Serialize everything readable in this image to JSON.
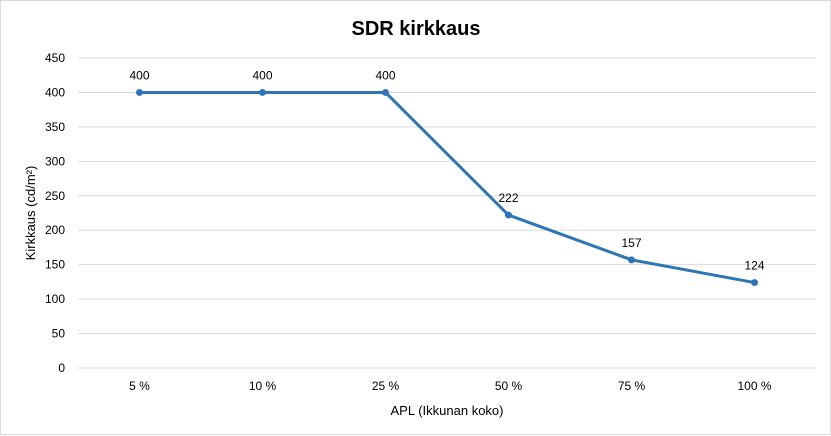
{
  "chart_data": {
    "type": "line",
    "title": "SDR kirkkaus",
    "xlabel": "APL (Ikkunan koko)",
    "ylabel": "Kirkkaus (cd/m²)",
    "categories": [
      "5 %",
      "10 %",
      "25 %",
      "50 %",
      "75 %",
      "100 %"
    ],
    "series": [
      {
        "values": [
          400,
          400,
          400,
          222,
          157,
          124
        ],
        "color": "#2e75b6"
      }
    ],
    "ylim": [
      0,
      450
    ],
    "yticks": [
      "0",
      "50",
      "100",
      "150",
      "200",
      "250",
      "300",
      "350",
      "400",
      "450"
    ],
    "grid": true,
    "legend": "none",
    "data_labels": true
  }
}
